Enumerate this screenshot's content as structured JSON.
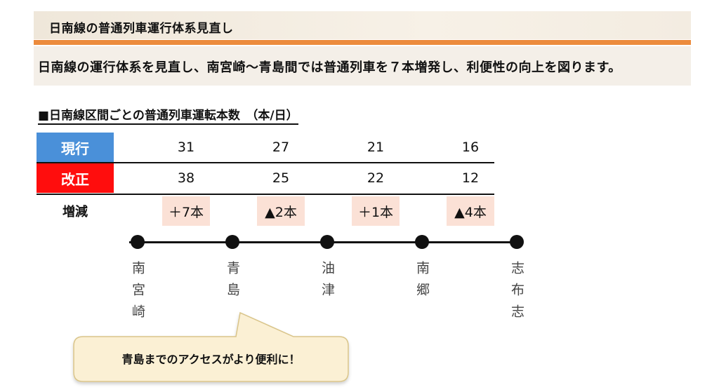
{
  "header": {
    "title": "日南線の普通列車運行体系見直し"
  },
  "summary": {
    "text": "日南線の運行体系を見直し、南宮崎～青島間では普通列車を７本増発し、利便性の向上を図ります。"
  },
  "section": {
    "heading": "■日南線区間ごとの普通列車運転本数　（本/日）"
  },
  "table": {
    "row_labels": {
      "current": "現行",
      "revised": "改正",
      "change": "増減"
    },
    "current": [
      "31",
      "27",
      "21",
      "16"
    ],
    "revised": [
      "38",
      "25",
      "22",
      "12"
    ],
    "change": [
      "＋7本",
      "▲2本",
      "＋1本",
      "▲4本"
    ]
  },
  "stations": [
    "南宮崎",
    "青島",
    "油津",
    "南郷",
    "志布志"
  ],
  "callout": {
    "text": "青島までのアクセスがより便利に！"
  },
  "colors": {
    "accent_orange": "#ec8b3d",
    "current_blue": "#4a90d9",
    "revised_red": "#ff0d0d",
    "change_highlight": "#fbe1d6",
    "callout_fill": "#fbf0d4",
    "callout_border": "#d9c489"
  }
}
